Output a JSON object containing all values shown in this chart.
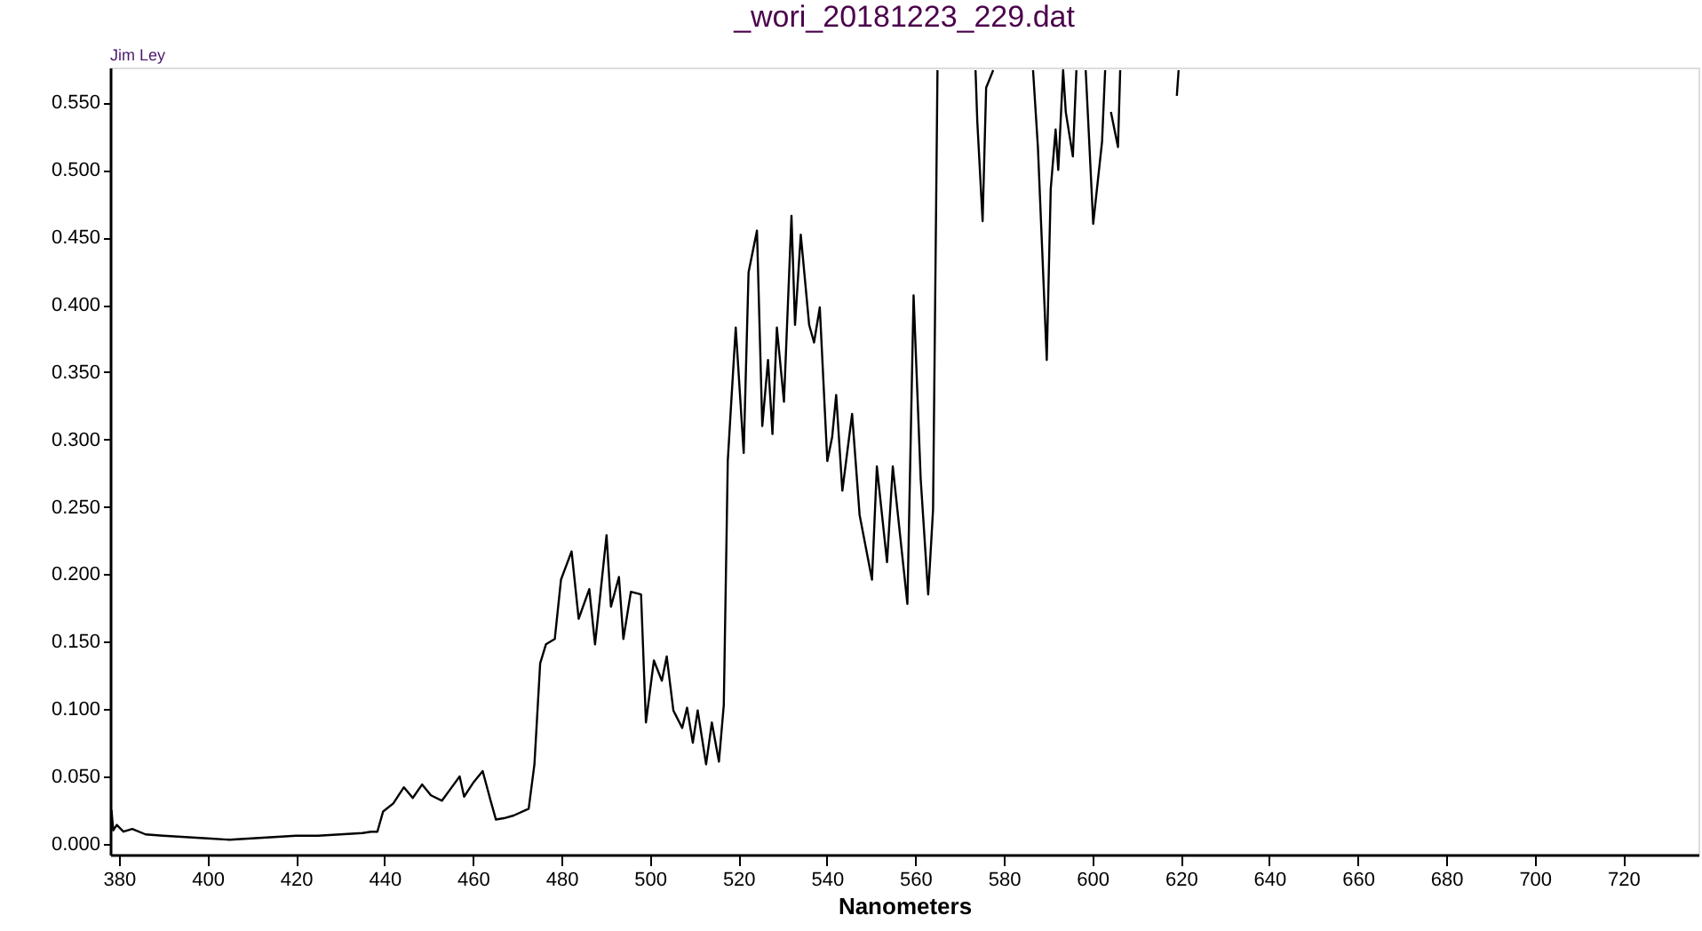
{
  "chart_data": {
    "type": "line",
    "title": "_wori_20181223_229.dat",
    "xlabel": "Nanometers",
    "annotations": [
      "Jim Ley"
    ],
    "x": [
      378.3,
      378.7,
      379.5,
      381,
      383,
      386,
      390,
      395,
      400,
      405,
      410,
      415,
      420,
      425,
      430,
      435,
      437,
      438.4,
      439.7,
      442,
      444.4,
      446.4,
      448.5,
      450.5,
      453,
      455,
      457,
      458,
      460,
      462.2,
      464,
      465.2,
      467,
      469.2,
      472.6,
      473.9,
      475.2,
      476.5,
      478.5,
      479.9,
      482.3,
      483.9,
      486.3,
      487.6,
      490.2,
      491.2,
      493,
      494,
      495.7,
      498,
      499.1,
      500.9,
      502.7,
      503.8,
      505.3,
      507.3,
      508.4,
      509.7,
      510.8,
      512.7,
      514,
      515.6,
      516.7,
      517.6,
      518.3,
      519.4,
      521.2,
      522.3,
      524.2,
      525.4,
      526.7,
      527.7,
      528.7,
      530.3,
      532,
      532.8,
      534.1,
      536,
      537.1,
      538.4,
      540.1,
      541.2,
      542.1,
      543.5,
      545.7,
      547.4,
      550.2,
      551.3,
      553.6,
      554.9,
      558.2,
      559.6,
      561.2,
      562.9,
      564,
      565,
      570,
      573.6,
      574,
      575.2,
      576,
      577.6,
      582,
      586.6,
      587.7,
      589.7,
      590.6,
      591.7,
      592.3,
      593.4,
      594,
      595.6,
      596.4,
      597.5,
      598.5,
      599.3,
      600.2,
      602.2,
      602.9,
      603.5,
      604.2,
      605.8,
      606.3,
      612,
      619.1,
      619.5
    ],
    "series": [
      {
        "color": "#000000",
        "values": [
          0.025,
          0.01,
          0.014,
          0.009,
          0.011,
          0.007,
          0.006,
          0.005,
          0.004,
          0.003,
          0.004,
          0.005,
          0.006,
          0.006,
          0.007,
          0.008,
          0.009,
          0.009,
          0.024,
          0.03,
          0.042,
          0.034,
          0.044,
          0.036,
          0.032,
          0.041,
          0.05,
          0.035,
          0.045,
          0.054,
          0.032,
          0.018,
          0.019,
          0.021,
          0.026,
          0.059,
          0.134,
          0.148,
          0.152,
          0.196,
          0.217,
          0.167,
          0.189,
          0.148,
          0.229,
          0.176,
          0.198,
          0.152,
          0.187,
          0.185,
          0.09,
          0.136,
          0.121,
          0.139,
          0.099,
          0.086,
          0.101,
          0.075,
          0.099,
          0.059,
          0.09,
          0.061,
          0.103,
          0.284,
          0.323,
          0.383,
          0.29,
          0.424,
          0.455,
          0.31,
          0.359,
          0.304,
          0.383,
          0.328,
          0.466,
          0.385,
          0.452,
          0.385,
          0.372,
          0.398,
          0.284,
          0.302,
          0.333,
          0.262,
          0.319,
          0.244,
          0.196,
          0.28,
          0.209,
          0.28,
          0.178,
          0.407,
          0.271,
          0.185,
          0.248,
          0.574,
          null,
          0.574,
          0.536,
          0.462,
          0.561,
          0.574,
          null,
          0.574,
          0.517,
          0.359,
          0.486,
          0.53,
          0.5,
          0.574,
          0.543,
          0.51,
          0.574,
          null,
          0.574,
          0.521,
          0.46,
          0.521,
          0.574,
          null,
          0.543,
          0.517,
          0.574,
          null,
          0.555,
          0.574
        ]
      }
    ],
    "xlim": [
      378,
      737
    ],
    "ylim": [
      -0.008,
      0.576
    ],
    "xticks": [
      380,
      400,
      420,
      440,
      460,
      480,
      500,
      520,
      540,
      560,
      580,
      600,
      620,
      640,
      660,
      680,
      700,
      720
    ],
    "yticks": [
      {
        "value": 0,
        "label": "0.000"
      },
      {
        "value": 0.05,
        "label": "0.050"
      },
      {
        "value": 0.1,
        "label": "0.100"
      },
      {
        "value": 0.15,
        "label": "0.150"
      },
      {
        "value": 0.2,
        "label": "0.200"
      },
      {
        "value": 0.25,
        "label": "0.250"
      },
      {
        "value": 0.3,
        "label": "0.300"
      },
      {
        "value": 0.35,
        "label": "0.350"
      },
      {
        "value": 0.4,
        "label": "0.400"
      },
      {
        "value": 0.45,
        "label": "0.450"
      },
      {
        "value": 0.5,
        "label": "0.500"
      },
      {
        "value": 0.55,
        "label": "0.550"
      }
    ],
    "grid": false,
    "marker": "none",
    "line_style": "solid"
  }
}
